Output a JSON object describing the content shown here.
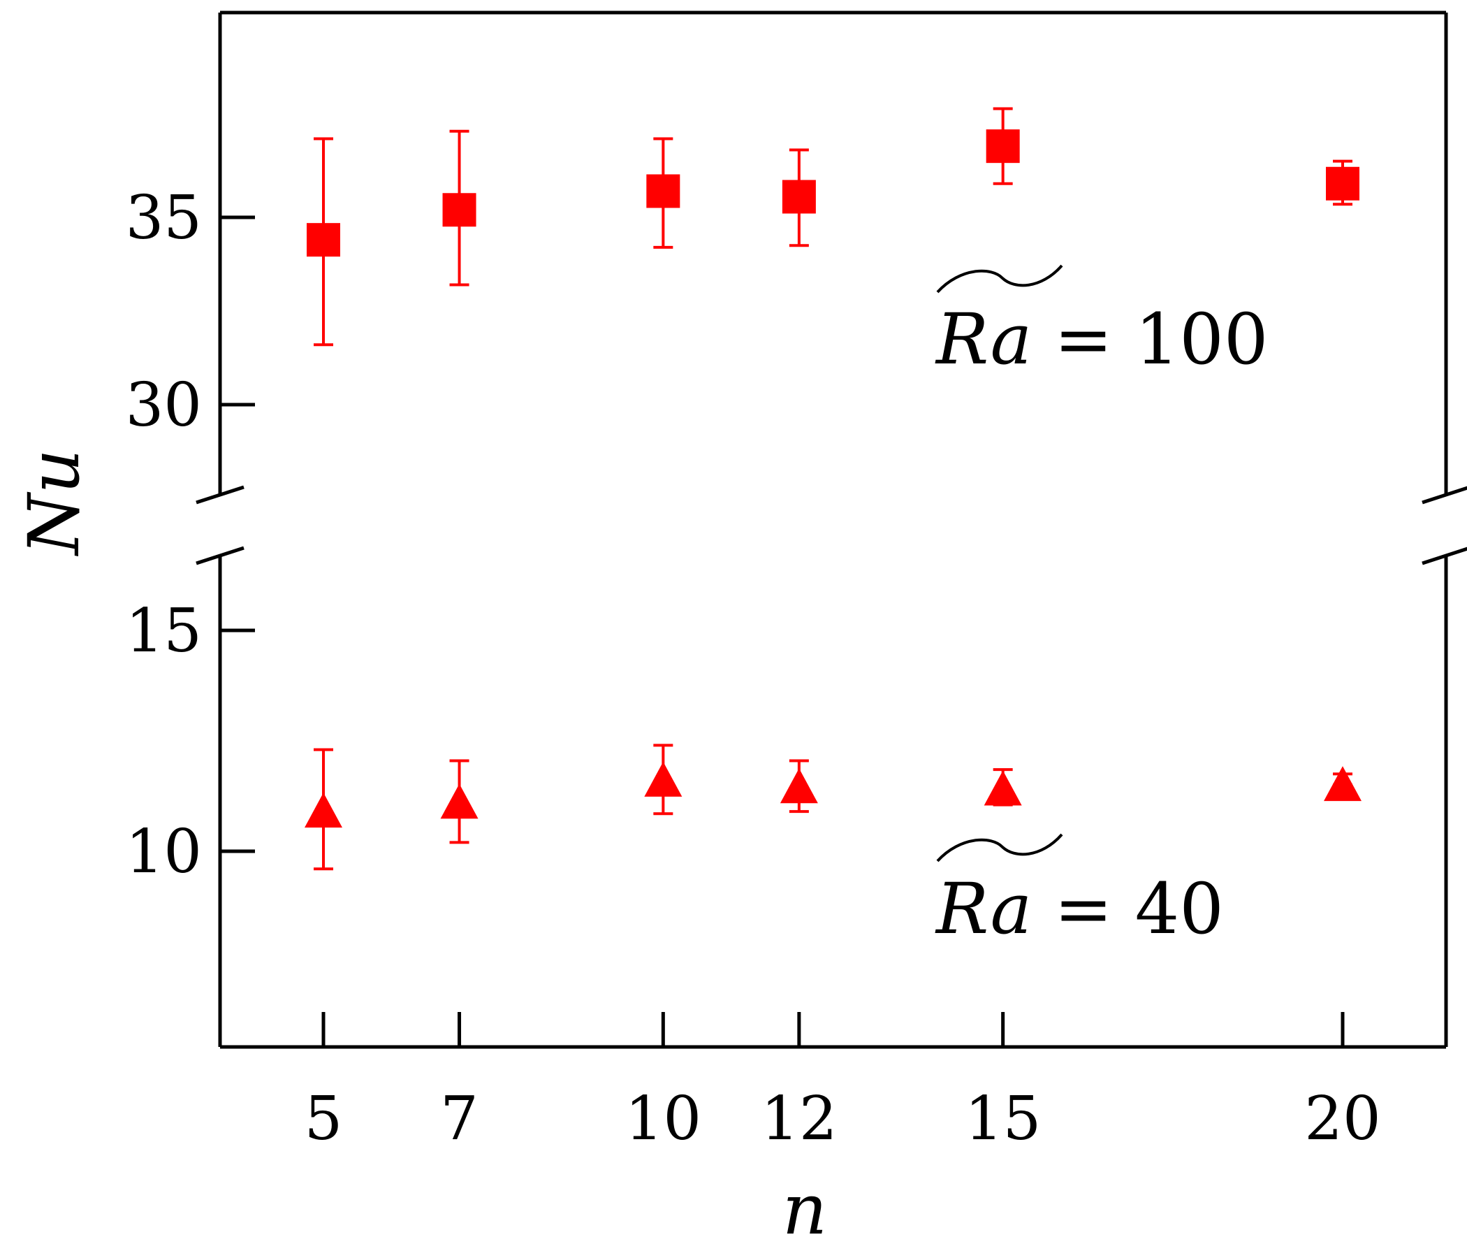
{
  "chart_data": {
    "type": "scatter",
    "title": "",
    "xlabel": "n",
    "ylabel": "Nu",
    "x_ticks": [
      5,
      7,
      10,
      12,
      15,
      20
    ],
    "broken_y_axis": true,
    "upper_panel": {
      "ylim": [
        27.5,
        40
      ],
      "y_ticks": [
        30,
        35
      ]
    },
    "lower_panel": {
      "ylim": [
        5,
        16.5
      ],
      "y_ticks": [
        10,
        15
      ]
    },
    "series": [
      {
        "name": "Ra100",
        "marker": "square",
        "color": "#ff0000",
        "panel": "upper",
        "points": [
          {
            "x": 5,
            "y": 34.4,
            "err_low": 31.6,
            "err_high": 37.1
          },
          {
            "x": 7,
            "y": 35.2,
            "err_low": 33.2,
            "err_high": 37.3
          },
          {
            "x": 10,
            "y": 35.7,
            "err_low": 34.2,
            "err_high": 37.1
          },
          {
            "x": 12,
            "y": 35.55,
            "err_low": 34.25,
            "err_high": 36.8
          },
          {
            "x": 15,
            "y": 36.9,
            "err_low": 35.9,
            "err_high": 37.9
          },
          {
            "x": 20,
            "y": 35.9,
            "err_low": 35.35,
            "err_high": 36.5
          }
        ]
      },
      {
        "name": "Ra40",
        "marker": "triangle",
        "color": "#ff0000",
        "panel": "lower",
        "points": [
          {
            "x": 5,
            "y": 10.9,
            "err_low": 9.6,
            "err_high": 12.3
          },
          {
            "x": 7,
            "y": 11.1,
            "err_low": 10.2,
            "err_high": 12.05
          },
          {
            "x": 10,
            "y": 11.6,
            "err_low": 10.85,
            "err_high": 12.4
          },
          {
            "x": 12,
            "y": 11.45,
            "err_low": 10.9,
            "err_high": 12.05
          },
          {
            "x": 15,
            "y": 11.4,
            "err_low": 11.05,
            "err_high": 11.85
          },
          {
            "x": 20,
            "y": 11.5,
            "err_low": 11.5,
            "err_high": 11.75
          }
        ]
      }
    ],
    "annotations": [
      {
        "id": "upper",
        "symbol": "Ra",
        "text": " = 100"
      },
      {
        "id": "lower",
        "symbol": "Ra",
        "text": " = 40"
      }
    ]
  }
}
